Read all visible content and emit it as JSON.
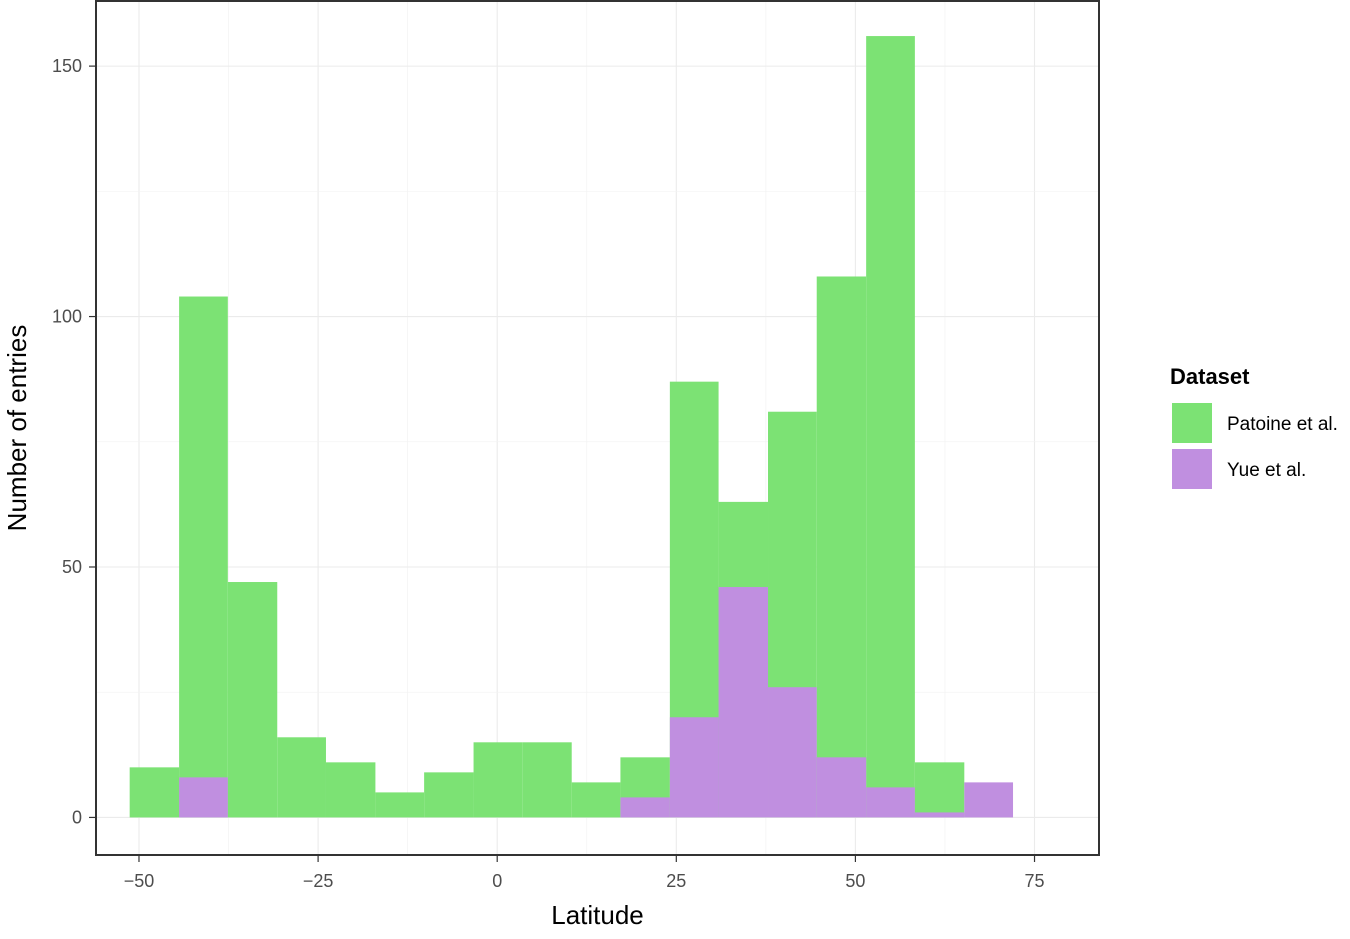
{
  "chart_data": {
    "type": "bar",
    "subtype": "histogram-stacked",
    "xlabel": "Latitude",
    "ylabel": "Number of entries",
    "xlim": [
      -56,
      84
    ],
    "ylim": [
      -7.5,
      163
    ],
    "x_ticks": [
      -50,
      -25,
      0,
      25,
      50,
      75
    ],
    "x_tick_labels": [
      "−50",
      "−25",
      "0",
      "25",
      "50",
      "75"
    ],
    "y_ticks": [
      0,
      50,
      100,
      150
    ],
    "y_tick_labels": [
      "0",
      "50",
      "100",
      "150"
    ],
    "grid": true,
    "legend_position": "right",
    "bin_edges": [
      -51.3,
      -44.4,
      -37.6,
      -30.7,
      -23.9,
      -17.0,
      -10.2,
      -3.3,
      3.5,
      10.4,
      17.2,
      24.1,
      30.9,
      37.8,
      44.6,
      51.5,
      58.3,
      65.2,
      72.0
    ],
    "series": [
      {
        "name": "Patoine et al.",
        "color": "#7CE274",
        "values": [
          10,
          104,
          47,
          16,
          11,
          5,
          9,
          15,
          15,
          7,
          12,
          87,
          63,
          81,
          108,
          156,
          11,
          0
        ]
      },
      {
        "name": "Yue et al.",
        "color": "#C08FE0",
        "values": [
          0,
          8,
          0,
          0,
          0,
          0,
          0,
          0,
          0,
          0,
          4,
          20,
          46,
          26,
          12,
          6,
          1,
          7
        ]
      }
    ],
    "legend": {
      "title": "Dataset"
    }
  }
}
